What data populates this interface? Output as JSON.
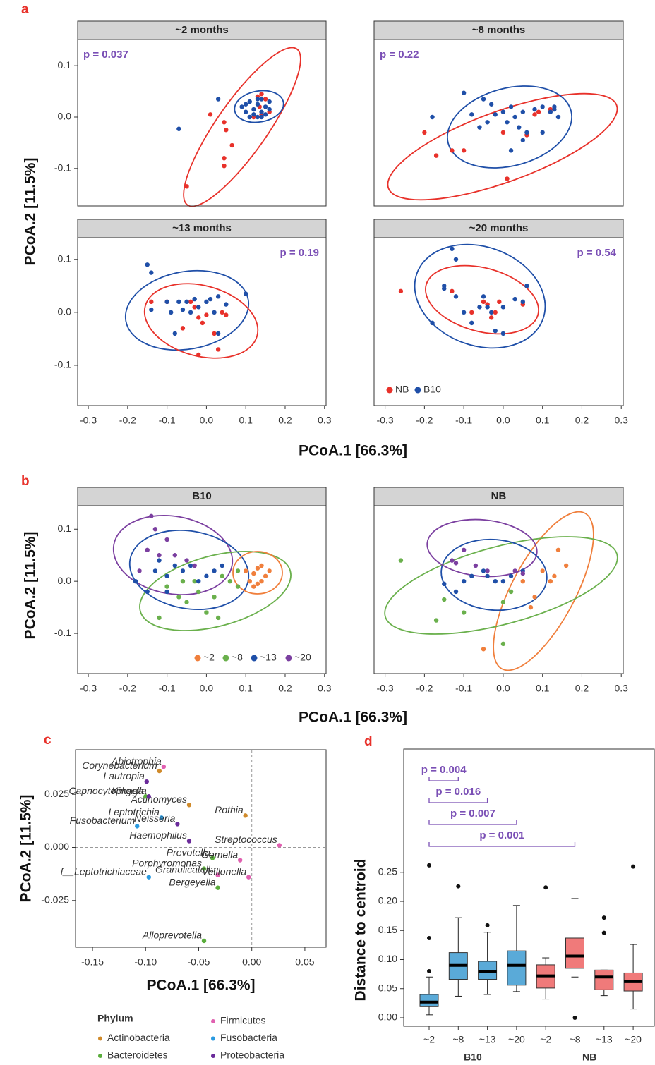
{
  "panels": [
    {
      "letter": "a",
      "x_label": "PCoA.1   [66.3%]",
      "y_label": "PCoA.2 [11.5%]"
    },
    {
      "letter": "b",
      "x_label": "PCoA.1   [66.3%]",
      "y_label": "PCoA.2 [11.5%]"
    },
    {
      "letter": "c"
    },
    {
      "letter": "d"
    }
  ],
  "chart_data": [
    {
      "type": "scatter",
      "title": "~2 months",
      "annotation": "p = 0.037",
      "xlim": [
        -0.327,
        0.304
      ],
      "ylim": [
        -0.173,
        0.151
      ],
      "yticks": [
        -0.1,
        {
          "value": 0,
          "label": "0.0"
        },
        0.1
      ],
      "series": [
        {
          "color": "#e8312a",
          "x": [
            -0.05,
            0.01,
            0.045,
            0.05,
            0.065,
            0.045,
            0.045,
            0.13,
            0.14,
            0.12,
            0.14,
            0.16,
            0.15,
            0.135
          ],
          "y": [
            -0.135,
            0.005,
            -0.01,
            -0.025,
            -0.055,
            -0.08,
            -0.095,
            0.04,
            0.045,
            0.0,
            0.005,
            0.01,
            0.035,
            0.02
          ]
        },
        {
          "color": "#1f4fa8",
          "x": [
            -0.07,
            0.03,
            0.09,
            0.1,
            0.11,
            0.12,
            0.13,
            0.13,
            0.14,
            0.14,
            0.15,
            0.15,
            0.16,
            0.12,
            0.11,
            0.14,
            0.16,
            0.1,
            0.13
          ],
          "y": [
            -0.023,
            0.035,
            0.02,
            0.01,
            0.03,
            0.015,
            0.0,
            0.025,
            0.035,
            0.01,
            0.02,
            0.005,
            0.015,
            0.005,
            0.0,
            0.0,
            0.03,
            0.025,
            0.035
          ]
        }
      ]
    },
    {
      "type": "scatter",
      "title": "~8 months",
      "annotation": "p = 0.22",
      "xlim": [
        -0.328,
        0.305
      ],
      "ylim": [
        -0.173,
        0.151
      ],
      "series": [
        {
          "color": "#e8312a",
          "x": [
            -0.2,
            -0.17,
            -0.13,
            -0.1,
            0.01,
            0.06,
            0.08,
            0.09,
            0.12,
            0.0
          ],
          "y": [
            -0.03,
            -0.075,
            -0.065,
            -0.065,
            -0.12,
            -0.035,
            0.005,
            0.01,
            0.015,
            -0.03
          ]
        },
        {
          "color": "#1f4fa8",
          "x": [
            -0.18,
            -0.1,
            -0.05,
            -0.03,
            -0.02,
            0.0,
            0.01,
            0.02,
            0.03,
            0.04,
            0.05,
            0.06,
            0.08,
            0.1,
            0.12,
            0.13,
            0.14,
            0.13,
            -0.06,
            -0.04,
            0.02,
            0.05,
            0.1,
            -0.08
          ],
          "y": [
            0.0,
            0.047,
            0.035,
            0.025,
            0.005,
            0.01,
            -0.01,
            0.02,
            0.0,
            -0.02,
            0.01,
            -0.03,
            0.015,
            0.02,
            0.01,
            0.015,
            0.0,
            0.02,
            -0.02,
            -0.01,
            -0.065,
            -0.045,
            -0.03,
            0.005
          ]
        }
      ]
    },
    {
      "type": "scatter",
      "title": "~13 months",
      "annotation": "p = 0.19",
      "xlim": [
        -0.327,
        0.304
      ],
      "ylim": [
        -0.176,
        0.141
      ],
      "xticks": [
        -0.3,
        -0.2,
        -0.1,
        {
          "value": 0,
          "label": "0.0"
        },
        0.1,
        0.2,
        0.3
      ],
      "yticks": [
        -0.1,
        {
          "value": 0,
          "label": "0.0"
        },
        0.1
      ],
      "series": [
        {
          "color": "#e8312a",
          "x": [
            -0.14,
            -0.1,
            -0.06,
            -0.03,
            -0.02,
            -0.01,
            0.0,
            0.02,
            -0.02,
            0.03,
            0.04,
            0.05,
            -0.04
          ],
          "y": [
            0.02,
            0.02,
            -0.03,
            0.01,
            -0.01,
            -0.02,
            -0.005,
            -0.04,
            -0.08,
            -0.07,
            0.0,
            -0.005,
            0.02
          ]
        },
        {
          "color": "#1f4fa8",
          "x": [
            -0.15,
            -0.14,
            -0.1,
            -0.09,
            -0.07,
            -0.05,
            -0.04,
            -0.03,
            -0.02,
            0.0,
            0.01,
            0.03,
            0.05,
            0.1,
            -0.08,
            0.03,
            -0.14,
            -0.06,
            0.02
          ],
          "y": [
            0.09,
            0.075,
            0.02,
            0.0,
            0.02,
            0.02,
            0.0,
            0.025,
            0.01,
            0.02,
            0.025,
            0.03,
            0.015,
            0.035,
            -0.04,
            -0.04,
            0.005,
            0.005,
            0.0
          ]
        }
      ]
    },
    {
      "type": "scatter",
      "title": "~20 months",
      "annotation": "p = 0.54",
      "xlim": [
        -0.328,
        0.305
      ],
      "ylim": [
        -0.176,
        0.141
      ],
      "xticks": [
        -0.3,
        -0.2,
        -0.1,
        {
          "value": 0,
          "label": "0.0"
        },
        0.1,
        0.2,
        0.3
      ],
      "legend": "bottom left",
      "series": [
        {
          "name": "NB",
          "color": "#e8312a",
          "x": [
            -0.26,
            -0.13,
            -0.05,
            -0.04,
            -0.02,
            -0.01,
            0.05,
            -0.08,
            -0.03
          ],
          "y": [
            0.04,
            0.04,
            0.02,
            0.015,
            0.0,
            0.02,
            0.015,
            0.0,
            -0.01
          ]
        },
        {
          "name": "B10",
          "color": "#1f4fa8",
          "x": [
            -0.13,
            -0.12,
            -0.15,
            -0.12,
            -0.1,
            -0.08,
            -0.18,
            -0.05,
            -0.04,
            -0.03,
            0.0,
            0.03,
            0.05,
            0.06,
            -0.06,
            -0.02,
            0.0,
            -0.15
          ],
          "y": [
            0.12,
            0.1,
            0.045,
            0.03,
            0.0,
            -0.02,
            -0.02,
            0.03,
            0.01,
            0.0,
            0.01,
            0.025,
            0.02,
            0.05,
            0.01,
            -0.035,
            -0.04,
            0.05
          ]
        }
      ]
    },
    {
      "type": "scatter",
      "title": "B10",
      "xlim": [
        -0.327,
        0.304
      ],
      "ylim": [
        -0.177,
        0.145
      ],
      "xticks": [
        -0.3,
        -0.2,
        -0.1,
        {
          "value": 0,
          "label": "0.0"
        },
        0.1,
        0.2,
        0.3
      ],
      "yticks": [
        -0.1,
        {
          "value": 0,
          "label": "0.0"
        },
        0.1
      ],
      "legend": "bottom right",
      "series": [
        {
          "name": "~2",
          "color": "#f07f3c",
          "x": [
            0.1,
            0.12,
            0.13,
            0.14,
            0.15,
            0.13,
            0.16,
            0.11,
            0.14,
            0.12
          ],
          "y": [
            0.02,
            0.015,
            0.025,
            0.0,
            0.01,
            -0.005,
            0.02,
            0.0,
            0.03,
            -0.01
          ]
        },
        {
          "name": "~8",
          "color": "#6ab04c",
          "x": [
            -0.1,
            -0.07,
            -0.05,
            -0.03,
            0.0,
            0.03,
            0.04,
            0.06,
            0.08,
            -0.02,
            0.02,
            -0.12,
            0.08,
            -0.06
          ],
          "y": [
            -0.01,
            -0.03,
            -0.04,
            0.0,
            -0.06,
            -0.07,
            0.01,
            0.0,
            0.02,
            -0.02,
            -0.03,
            -0.07,
            -0.01,
            0.0
          ]
        },
        {
          "name": "~13",
          "color": "#1f4fa8",
          "x": [
            -0.18,
            -0.15,
            -0.12,
            -0.1,
            -0.08,
            -0.06,
            -0.04,
            -0.02,
            0.0,
            0.02,
            0.04,
            -0.1,
            -0.13
          ],
          "y": [
            0.0,
            -0.02,
            0.04,
            0.01,
            0.03,
            0.02,
            0.03,
            0.0,
            0.01,
            0.02,
            0.03,
            -0.02,
            0.02
          ]
        },
        {
          "name": "~20",
          "color": "#7b3fa0",
          "x": [
            -0.14,
            -0.13,
            -0.15,
            -0.1,
            -0.08,
            -0.05,
            -0.03,
            -0.17,
            -0.12
          ],
          "y": [
            0.125,
            0.1,
            0.06,
            0.08,
            0.05,
            0.04,
            0.03,
            0.02,
            0.05
          ]
        }
      ]
    },
    {
      "type": "scatter",
      "title": "NB",
      "xlim": [
        -0.328,
        0.305
      ],
      "ylim": [
        -0.177,
        0.145
      ],
      "xticks": [
        -0.3,
        -0.2,
        -0.1,
        {
          "value": 0,
          "label": "0.0"
        },
        0.1,
        0.2,
        0.3
      ],
      "series": [
        {
          "color": "#f07f3c",
          "x": [
            0.13,
            0.12,
            0.14,
            0.08,
            0.07,
            0.1,
            0.05,
            -0.05,
            0.16
          ],
          "y": [
            0.01,
            0.0,
            0.06,
            -0.03,
            -0.05,
            0.02,
            0.0,
            -0.13,
            0.03
          ]
        },
        {
          "color": "#6ab04c",
          "x": [
            -0.26,
            -0.17,
            -0.15,
            -0.1,
            0.0,
            0.0,
            0.02
          ],
          "y": [
            0.04,
            -0.075,
            -0.035,
            -0.06,
            -0.12,
            -0.04,
            -0.02
          ]
        },
        {
          "color": "#1f4fa8",
          "x": [
            -0.15,
            -0.1,
            -0.08,
            -0.05,
            -0.04,
            -0.02,
            0.0,
            0.02,
            0.05,
            -0.12
          ],
          "y": [
            -0.005,
            0.0,
            0.01,
            0.02,
            0.01,
            0.0,
            0.0,
            0.01,
            0.02,
            -0.02
          ]
        },
        {
          "color": "#7b3fa0",
          "x": [
            -0.13,
            -0.12,
            -0.07,
            -0.04,
            0.03,
            0.05,
            -0.1
          ],
          "y": [
            0.04,
            0.035,
            0.03,
            0.02,
            0.02,
            0.015,
            0.06
          ]
        }
      ]
    },
    {
      "type": "scatter",
      "x_label": "PCoA.1   [66.3%]",
      "y_label": "PCoA.2   [11.5%]",
      "xlim": [
        -0.166,
        0.07
      ],
      "ylim": [
        -0.047,
        0.046
      ],
      "xticks": [
        -0.15,
        {
          "value": -0.1,
          "label": "-0.10"
        },
        -0.05,
        {
          "value": 0,
          "label": "0.00"
        },
        0.05
      ],
      "yticks": [
        -0.025,
        {
          "value": 0,
          "label": "0.000"
        },
        0.025
      ],
      "zero_lines": true,
      "legend": "below",
      "legend_title": "Phylum",
      "series": [
        {
          "name": "Actinobacteria",
          "color": "#d08a2a",
          "x": [
            -0.087,
            -0.059,
            -0.006
          ],
          "y": [
            0.036,
            0.02,
            0.015
          ],
          "labels": [
            "Corynebacterium",
            "Actinomyces",
            "Rothia"
          ]
        },
        {
          "name": "Bacteroidetes",
          "color": "#5aad3c",
          "x": [
            -0.1,
            -0.037,
            -0.045,
            -0.032,
            -0.045
          ],
          "y": [
            0.024,
            -0.005,
            -0.01,
            -0.019,
            -0.044
          ],
          "labels": [
            "Capnocytophaga",
            "Prevotella",
            "Porphyromonas",
            "Bergeyella",
            "Alloprevotella"
          ]
        },
        {
          "name": "Firmicutes",
          "color": "#e060b0",
          "x": [
            -0.083,
            0.026,
            -0.011,
            -0.032,
            -0.003
          ],
          "y": [
            0.038,
            0.001,
            -0.006,
            -0.013,
            -0.014
          ],
          "labels": [
            "Abiotrophia",
            "Streptococcus",
            "Gemella",
            "Granulicatella",
            "Veillonella"
          ]
        },
        {
          "name": "Fusobacteria",
          "color": "#2a9ae0",
          "x": [
            -0.085,
            -0.108,
            -0.097
          ],
          "y": [
            0.014,
            0.01,
            -0.014
          ],
          "labels": [
            "Leptotrichia",
            "Fusobacterium",
            "f__Leptotrichiaceae"
          ]
        },
        {
          "name": "Proteobacteria",
          "color": "#6a2a9a",
          "x": [
            -0.099,
            -0.097,
            -0.07,
            -0.059
          ],
          "y": [
            0.031,
            0.024,
            0.011,
            0.003
          ],
          "labels": [
            "Lautropia",
            "Kingella",
            "Neisseria",
            "Haemophilus"
          ]
        }
      ]
    },
    {
      "type": "box",
      "y_label": "Distance to centroid",
      "ylim": [
        -0.0146,
        0.462
      ],
      "yticks": [
        {
          "value": 0,
          "label": "0.00"
        },
        0.05,
        {
          "value": 0.1,
          "label": "0.10"
        },
        0.15,
        {
          "value": 0.2,
          "label": "0.20"
        },
        0.25
      ],
      "series": [
        {
          "name": "B10",
          "color": "#5aaad8",
          "categories": [
            "~2",
            "~8",
            "~13",
            "~20"
          ],
          "boxes": [
            {
              "median": 0.027,
              "q1": 0.019,
              "q3": 0.04,
              "whisker_low": 0.005,
              "whisker_high": 0.07,
              "outliers": [
                0.08,
                0.137,
                0.262
              ]
            },
            {
              "median": 0.09,
              "q1": 0.066,
              "q3": 0.112,
              "whisker_low": 0.037,
              "whisker_high": 0.172,
              "outliers": [
                0.226
              ]
            },
            {
              "median": 0.079,
              "q1": 0.066,
              "q3": 0.097,
              "whisker_low": 0.04,
              "whisker_high": 0.147,
              "outliers": [
                0.159
              ]
            },
            {
              "median": 0.09,
              "q1": 0.056,
              "q3": 0.115,
              "whisker_low": 0.045,
              "whisker_high": 0.193,
              "outliers": []
            }
          ]
        },
        {
          "name": "NB",
          "color": "#f07a7a",
          "categories": [
            "~2",
            "~8",
            "~13",
            "~20"
          ],
          "boxes": [
            {
              "median": 0.072,
              "q1": 0.051,
              "q3": 0.091,
              "whisker_low": 0.032,
              "whisker_high": 0.103,
              "outliers": [
                0.224
              ]
            },
            {
              "median": 0.106,
              "q1": 0.085,
              "q3": 0.137,
              "whisker_low": 0.07,
              "whisker_high": 0.205,
              "outliers": [
                0.0
              ]
            },
            {
              "median": 0.07,
              "q1": 0.048,
              "q3": 0.082,
              "whisker_low": 0.038,
              "whisker_high": 0.082,
              "outliers": [
                0.146,
                0.172
              ]
            },
            {
              "median": 0.062,
              "q1": 0.046,
              "q3": 0.077,
              "whisker_low": 0.015,
              "whisker_high": 0.126,
              "outliers": [
                0.26
              ]
            }
          ]
        }
      ],
      "comparisons": [
        {
          "label": "p = 0.004",
          "from": 0,
          "to": 1
        },
        {
          "label": "p = 0.016",
          "from": 0,
          "to": 2
        },
        {
          "label": "p = 0.007",
          "from": 0,
          "to": 3
        },
        {
          "label": "p = 0.001",
          "from": 0,
          "to": 5
        }
      ]
    }
  ]
}
